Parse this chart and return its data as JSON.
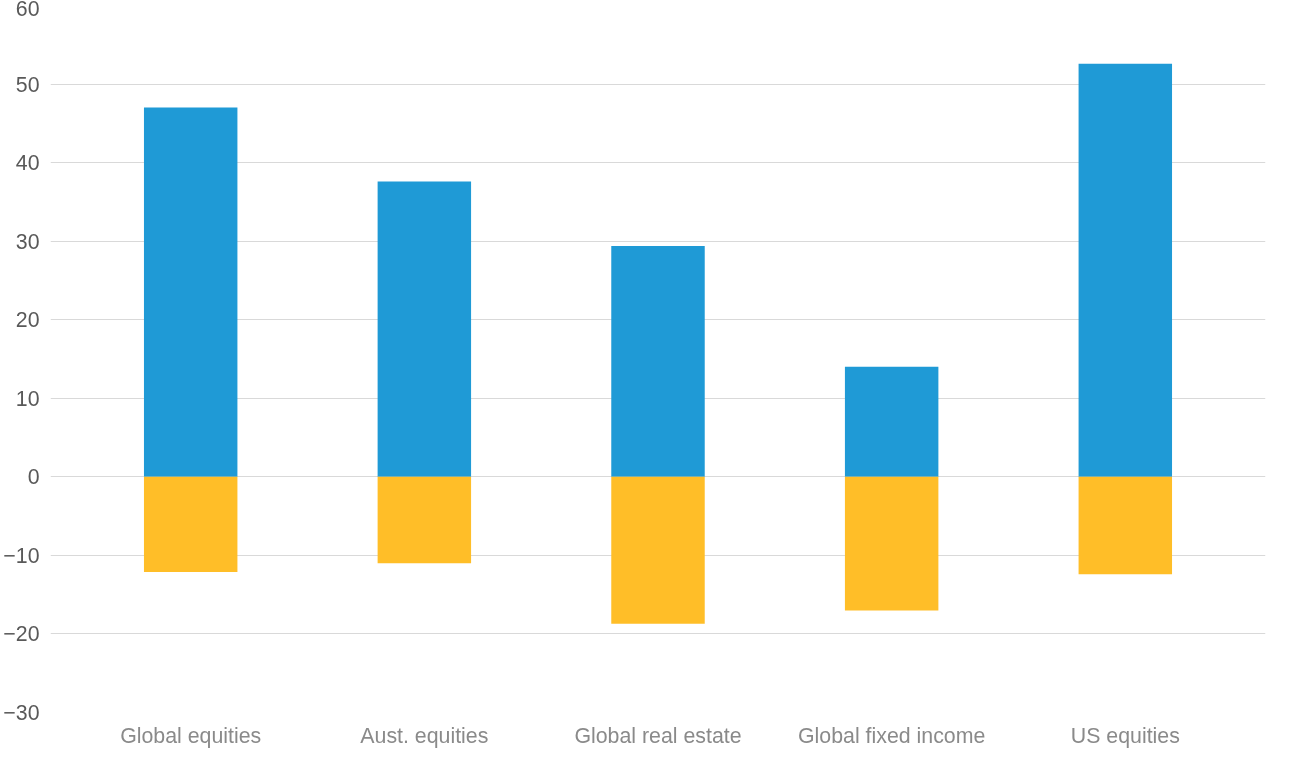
{
  "chart_data": {
    "type": "bar",
    "stacked": true,
    "categories": [
      "Global equities",
      "Aust. equities",
      "Global real estate",
      "Global fixed income",
      "US equities"
    ],
    "series": [
      {
        "color": "#1f9ad6",
        "values": [
          47,
          37.6,
          29.4,
          14,
          52.6
        ]
      },
      {
        "color": "#ffbe28",
        "values": [
          -12.1,
          -11,
          -18.7,
          -17,
          -12.4
        ]
      }
    ],
    "ylim": [
      -30,
      60
    ],
    "yticks": [
      -30,
      -20,
      -10,
      0,
      10,
      20,
      30,
      40,
      50,
      60
    ],
    "grid": "y"
  }
}
